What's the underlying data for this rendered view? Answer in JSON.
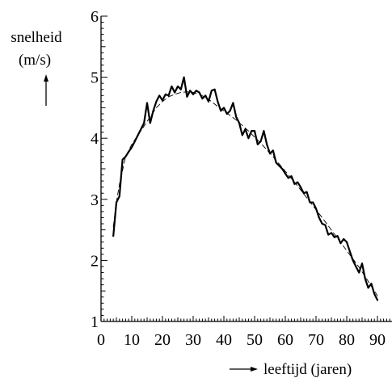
{
  "chart_data": {
    "type": "line",
    "title": "",
    "ylabel_lines": [
      "snelheid",
      "(m/s)"
    ],
    "xlabel": "leeftijd (jaren)",
    "xlim": [
      0,
      95
    ],
    "ylim": [
      1,
      6
    ],
    "x_ticks_major": [
      0,
      10,
      20,
      30,
      40,
      50,
      60,
      70,
      80,
      90
    ],
    "x_ticks_minor_step": 1,
    "y_ticks_major": [
      1,
      2,
      3,
      4,
      5,
      6
    ],
    "y_ticks_minor_step": 0.1,
    "grid": false,
    "series": [
      {
        "style": "solid",
        "x": [
          4,
          5,
          6,
          7,
          8,
          9,
          10,
          11,
          12,
          13,
          14,
          15,
          16,
          17,
          18,
          19,
          20,
          21,
          22,
          23,
          24,
          25,
          26,
          27,
          28,
          29,
          30,
          31,
          32,
          33,
          34,
          35,
          36,
          37,
          38,
          39,
          40,
          41,
          42,
          43,
          44,
          45,
          46,
          47,
          48,
          49,
          50,
          51,
          52,
          53,
          54,
          55,
          56,
          57,
          58,
          59,
          60,
          61,
          62,
          63,
          64,
          65,
          66,
          67,
          68,
          69,
          70,
          71,
          72,
          73,
          74,
          75,
          76,
          77,
          78,
          79,
          80,
          81,
          82,
          83,
          84,
          85,
          86,
          87,
          88,
          89,
          90
        ],
        "y": [
          2.4,
          2.95,
          3.05,
          3.65,
          3.7,
          3.78,
          3.85,
          3.95,
          4.05,
          4.15,
          4.25,
          4.58,
          4.25,
          4.45,
          4.6,
          4.7,
          4.62,
          4.72,
          4.7,
          4.85,
          4.75,
          4.85,
          4.8,
          5.0,
          4.68,
          4.78,
          4.72,
          4.78,
          4.75,
          4.65,
          4.7,
          4.6,
          4.78,
          4.8,
          4.6,
          4.45,
          4.5,
          4.4,
          4.45,
          4.58,
          4.35,
          4.25,
          4.05,
          4.15,
          4.0,
          4.12,
          4.12,
          3.9,
          3.95,
          4.12,
          3.9,
          3.75,
          3.8,
          3.6,
          3.55,
          3.5,
          3.42,
          3.35,
          3.38,
          3.25,
          3.28,
          3.2,
          3.1,
          3.12,
          2.95,
          2.95,
          2.85,
          2.7,
          2.6,
          2.58,
          2.42,
          2.45,
          2.38,
          2.4,
          2.28,
          2.35,
          2.3,
          2.15,
          2.0,
          1.9,
          1.8,
          1.95,
          1.7,
          1.55,
          1.62,
          1.45,
          1.35
        ]
      },
      {
        "style": "dashed",
        "x": [
          4,
          5,
          6,
          8,
          10,
          12,
          14,
          16,
          18,
          20,
          22,
          24,
          26,
          28,
          30,
          32,
          34,
          36,
          38,
          40,
          44,
          48,
          52,
          56,
          60,
          64,
          68,
          72,
          76,
          80,
          84,
          88,
          90
        ],
        "y": [
          2.55,
          2.95,
          3.25,
          3.7,
          3.9,
          4.05,
          4.2,
          4.35,
          4.5,
          4.6,
          4.68,
          4.72,
          4.75,
          4.76,
          4.75,
          4.72,
          4.67,
          4.6,
          4.52,
          4.45,
          4.3,
          4.12,
          3.92,
          3.7,
          3.46,
          3.22,
          2.96,
          2.7,
          2.43,
          2.16,
          1.89,
          1.58,
          1.42
        ]
      }
    ]
  }
}
